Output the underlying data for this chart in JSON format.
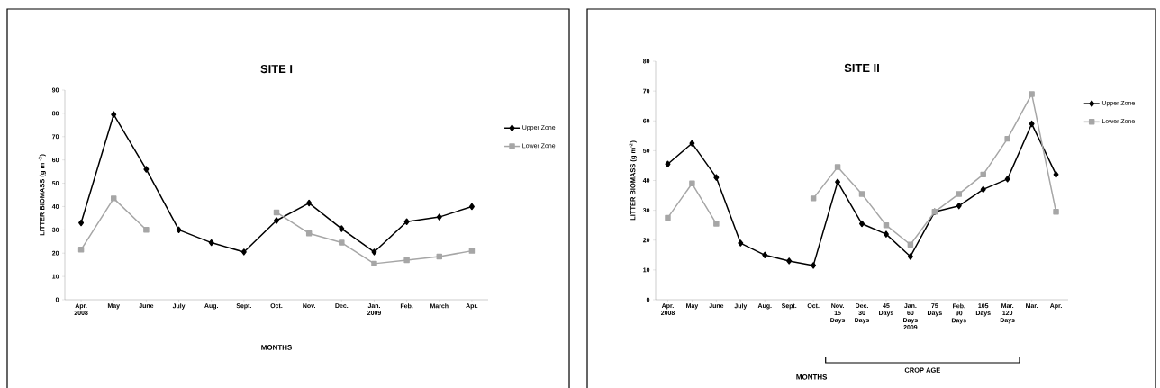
{
  "chart_data": [
    {
      "type": "line",
      "title": "SITE I",
      "xlabel": "MONTHS",
      "ylabel": "LITTER BIOMASS (g m $^{-2}$)",
      "categories": [
        "Apr. 2008",
        "May",
        "June",
        "July",
        "Aug.",
        "Sept.",
        "Oct.",
        "Nov.",
        "Dec.",
        "Jan. 2009",
        "Feb.",
        "March",
        "Apr."
      ],
      "series": [
        {
          "name": "Upper Zone",
          "color": "#000000",
          "marker": "diamond",
          "values": [
            33,
            79.5,
            56,
            30,
            24.5,
            20.5,
            34,
            41.5,
            30.5,
            20.5,
            33.5,
            35.5,
            40
          ]
        },
        {
          "name": "Lower Zone",
          "color": "#a6a6a6",
          "marker": "square",
          "values": [
            21.5,
            43.5,
            30,
            null,
            null,
            null,
            37.5,
            28.5,
            24.5,
            15.5,
            17,
            18.5,
            21
          ]
        }
      ],
      "ylim": [
        0,
        90
      ],
      "yticks": [
        0,
        10,
        20,
        30,
        40,
        50,
        60,
        70,
        80,
        90
      ],
      "legend": "right"
    },
    {
      "type": "line",
      "title": "SITE II",
      "xlabel": "MONTHS",
      "ylabel": "LITTER BIOMASS (g m$^{-2}$)",
      "categories": [
        "Apr. 2008",
        "May",
        "June",
        "July",
        "Aug.",
        "Sept.",
        "Oct.",
        "Nov. 15 Days",
        "Dec. 30 Days",
        "45 Days",
        "Jan. 60 Days 2009",
        "75 Days",
        "Feb. 90 Days",
        "105 Days",
        "Mar. 120 Days",
        "Mar.",
        "Apr."
      ],
      "series": [
        {
          "name": "Upper Zone",
          "color": "#000000",
          "marker": "diamond",
          "values": [
            45.5,
            52.5,
            41,
            19,
            15,
            13,
            11.5,
            39.5,
            25.5,
            22,
            14.5,
            29.5,
            31.5,
            37,
            40.5,
            59,
            42
          ]
        },
        {
          "name": "Lower Zone",
          "color": "#a6a6a6",
          "marker": "square",
          "values": [
            27.5,
            39,
            25.5,
            null,
            null,
            null,
            34,
            44.5,
            35.5,
            25,
            18.5,
            29.5,
            35.5,
            42,
            54,
            69,
            29.5
          ]
        }
      ],
      "ylim": [
        0,
        80
      ],
      "yticks": [
        0,
        10,
        20,
        30,
        40,
        50,
        60,
        70,
        80
      ],
      "legend": "right",
      "annotations": [
        "CROP AGE"
      ]
    }
  ]
}
